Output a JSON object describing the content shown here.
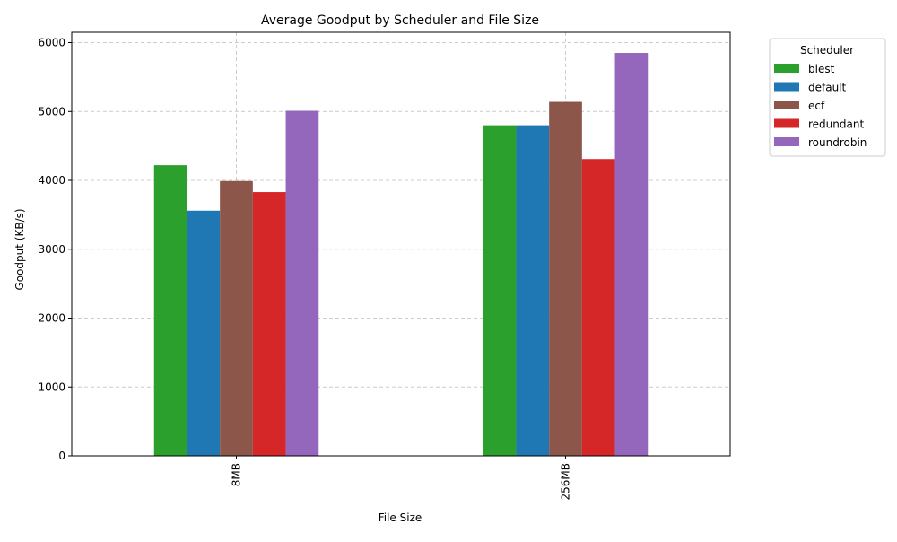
{
  "chart_data": {
    "type": "bar",
    "title": "Average Goodput by Scheduler and File Size",
    "xlabel": "File Size",
    "ylabel": "Goodput (KB/s)",
    "categories": [
      "8MB",
      "256MB"
    ],
    "ylim": [
      0,
      6150
    ],
    "yticks": [
      0,
      1000,
      2000,
      3000,
      4000,
      5000,
      6000
    ],
    "grid": true,
    "legend": {
      "title": "Scheduler",
      "placement": "outside-top-right"
    },
    "series": [
      {
        "name": "blest",
        "color": "#2ca02c",
        "values": [
          4220,
          4800
        ]
      },
      {
        "name": "default",
        "color": "#1f77b4",
        "values": [
          3560,
          4800
        ]
      },
      {
        "name": "ecf",
        "color": "#8c564b",
        "values": [
          3990,
          5140
        ]
      },
      {
        "name": "redundant",
        "color": "#d62728",
        "values": [
          3830,
          4310
        ]
      },
      {
        "name": "roundrobin",
        "color": "#9467bd",
        "values": [
          5010,
          5850
        ]
      }
    ]
  }
}
